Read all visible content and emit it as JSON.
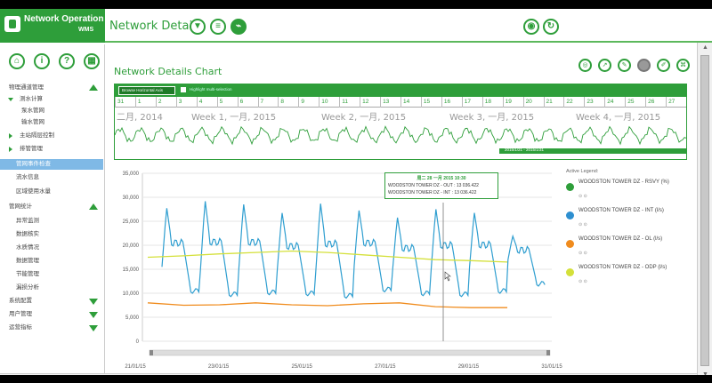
{
  "app": {
    "title": "Network Operation",
    "subtitle": "WMS",
    "header_title": "Network Details:",
    "header_icons": [
      "funnel-icon",
      "list-icon",
      "chart-icon"
    ],
    "header_right_icons": [
      "globe-icon",
      "refresh-icon"
    ],
    "accent": "#2e9e3a"
  },
  "sidebar": {
    "top_icons": [
      "home-icon",
      "info-icon",
      "help-icon",
      "dashboard-icon"
    ],
    "items": [
      {
        "label": "物理通道管理",
        "level": 0,
        "expander": "up"
      },
      {
        "label": "测水计算",
        "level": 1,
        "marker": "down"
      },
      {
        "label": "泵水管网",
        "level": 2
      },
      {
        "label": "输水管网",
        "level": 2
      },
      {
        "label": "主站隔层控制",
        "level": 1,
        "marker": "right"
      },
      {
        "label": "排管管理",
        "level": 1,
        "marker": "right"
      },
      {
        "label": "管网事件检查",
        "level": 2,
        "active": true
      },
      {
        "label": "流水信息",
        "level": 2
      },
      {
        "label": "区域使用水量",
        "level": 2
      },
      {
        "label": "管网统计",
        "level": 0,
        "expander": "up"
      },
      {
        "label": "异常监测",
        "level": 3
      },
      {
        "label": "数据核实",
        "level": 3
      },
      {
        "label": "水质情况",
        "level": 3
      },
      {
        "label": "数据管理",
        "level": 3
      },
      {
        "label": "节能管理",
        "level": 3
      },
      {
        "label": "漏损分析",
        "level": 3
      },
      {
        "label": "系统配置",
        "level": 0,
        "expander": "down"
      },
      {
        "label": "用户管理",
        "level": 0,
        "expander": "down"
      },
      {
        "label": "运营指标",
        "level": 0,
        "expander": "down"
      }
    ]
  },
  "main": {
    "chart_title": "Network Details Chart",
    "tool_icons": [
      "eye-icon",
      "trend-icon",
      "pencil-icon",
      "circle-icon",
      "edit-icon",
      "pdf-icon"
    ],
    "navigator": {
      "button_label": "Browse Horizontal Axis",
      "checkbox_label": "Highlight multi-selection",
      "days": [
        "31",
        "1",
        "2",
        "3",
        "4",
        "5",
        "6",
        "7",
        "8",
        "9",
        "10",
        "11",
        "12",
        "13",
        "14",
        "15",
        "16",
        "17",
        "18",
        "19",
        "20",
        "21",
        "22",
        "23",
        "24",
        "25",
        "26",
        "27"
      ],
      "weeks": [
        "二月, 2014",
        "Week 1, 一月, 2015",
        "Week 2, 一月, 2015",
        "Week 3, 一月, 2015",
        "Week 4, 一月, 2015"
      ],
      "selection_label": "2015/1/21 - 2015/1/31"
    },
    "tooltip": {
      "title": "周二 28 一月 2015 10:30",
      "rows": [
        "WOODSTON TOWER DZ - OUT : 13 036.422",
        "WOODSTON TOWER DZ - INT : 13 036.422"
      ]
    }
  },
  "legend": {
    "title": "Active Legend:",
    "items": [
      {
        "label": "WOODSTON TOWER DZ - RSVY (%)",
        "color": "#2e9e3a"
      },
      {
        "label": "WOODSTON TOWER DZ - INT (l/s)",
        "color": "#2e8fd0"
      },
      {
        "label": "WOODSTON TOWER DZ - OL (l/s)",
        "color": "#f08c1e"
      },
      {
        "label": "WOODSTON TOWER DZ - ODP (l/s)",
        "color": "#d4e03a"
      }
    ],
    "controls": "⊙ ⊙"
  },
  "chart_data": {
    "type": "line",
    "y_ticks": [
      "35,000",
      "30,000",
      "25,000",
      "20,000",
      "15,000",
      "10,000",
      "5,000",
      "0"
    ],
    "x_ticks": [
      "21/01/15",
      "23/01/15",
      "25/01/15",
      "27/01/15",
      "29/01/15",
      "31/01/15"
    ],
    "ylim": [
      0,
      35000
    ],
    "series": [
      {
        "name": "WOODSTON TOWER DZ - INT (l/s)",
        "color": "#2e9ed0",
        "days": 10,
        "peaks": [
          28000,
          29500,
          28800,
          27000,
          29000,
          27500,
          26000,
          27800,
          27000,
          22000
        ],
        "troughs": [
          10500,
          9800,
          10200,
          10000,
          9500,
          10800,
          10000,
          9800,
          10500,
          12000
        ]
      },
      {
        "name": "WOODSTON TOWER DZ - ODP (l/s)",
        "color": "#d4e03a",
        "values": [
          17500,
          17800,
          18200,
          18500,
          18800,
          18500,
          18000,
          17500,
          17000,
          16800,
          16500
        ]
      },
      {
        "name": "WOODSTON TOWER DZ - OL (l/s)",
        "color": "#f08c1e",
        "values": [
          8000,
          7500,
          7600,
          8000,
          7600,
          7400,
          7800,
          8000,
          7200,
          7000,
          7000
        ]
      }
    ],
    "crosshair_x": "28/01/15 10:30",
    "grid": true
  }
}
